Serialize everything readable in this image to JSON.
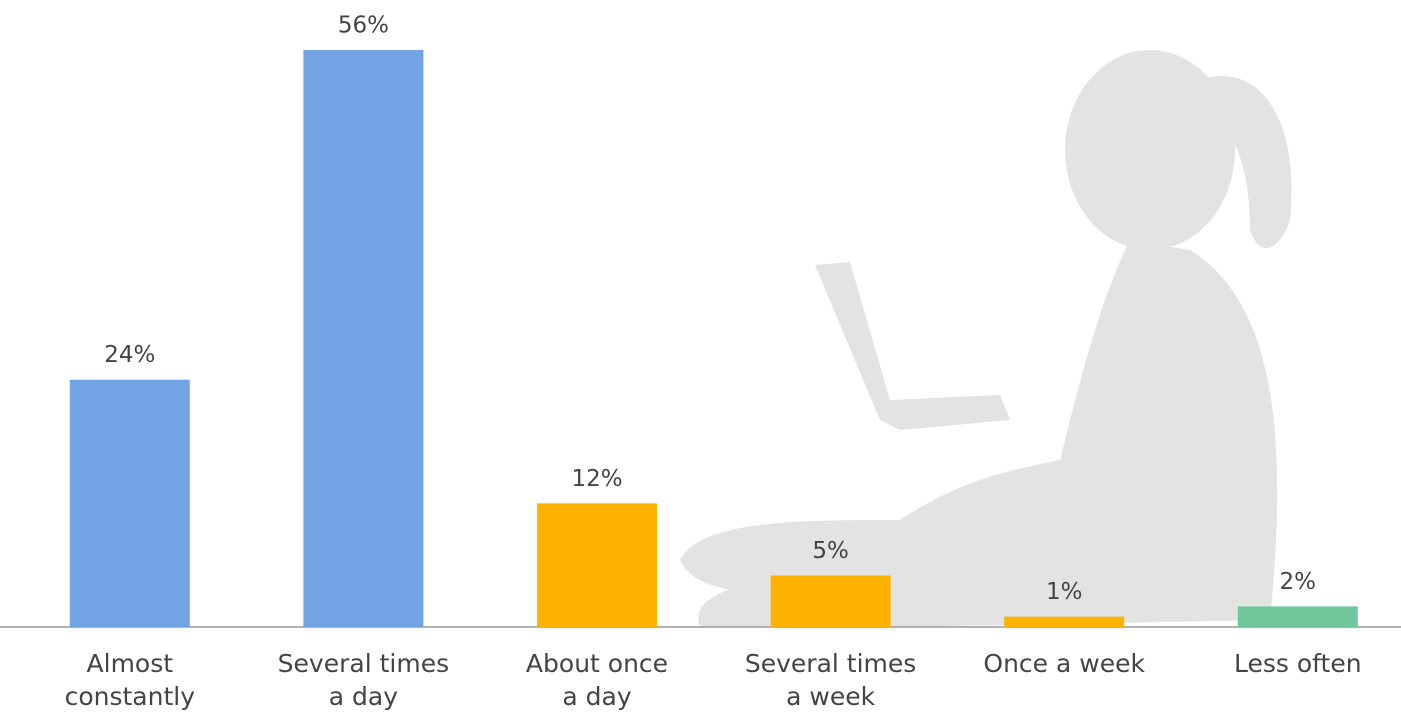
{
  "chart_data": {
    "type": "bar",
    "categories": [
      [
        "Almost",
        "constantly"
      ],
      [
        "Several times",
        "a day"
      ],
      [
        "About once",
        "a day"
      ],
      [
        "Several times",
        "a week"
      ],
      [
        "Once a week"
      ],
      [
        "Less often"
      ]
    ],
    "values": [
      24,
      56,
      12,
      5,
      1,
      2
    ],
    "value_labels": [
      "24%",
      "56%",
      "12%",
      "5%",
      "1%",
      "2%"
    ],
    "colors": [
      "#71a3e5",
      "#71a3e5",
      "#fdb300",
      "#fdb300",
      "#fdb300",
      "#6fc79a"
    ]
  }
}
